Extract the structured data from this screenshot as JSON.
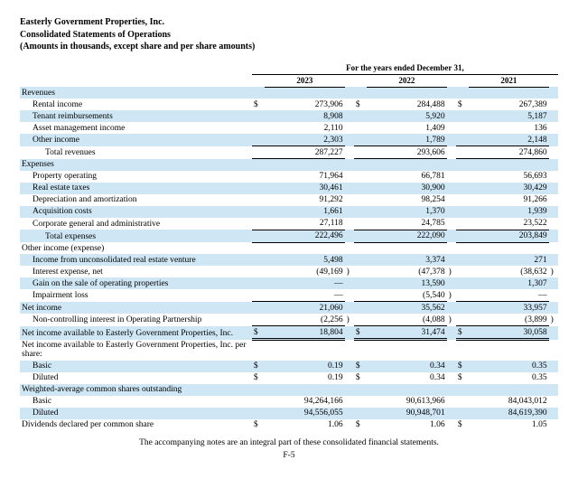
{
  "header": {
    "l1": "Easterly Government Properties, Inc.",
    "l2": "Consolidated Statements of Operations",
    "l3": "(Amounts in thousands, except share and per share amounts)"
  },
  "spanHeader": "For the years ended December 31,",
  "years": [
    "2023",
    "2022",
    "2021"
  ],
  "footnote": "The accompanying notes are an integral part of these consolidated financial statements.",
  "page": "F-5",
  "rows": [
    {
      "label": "Revenues",
      "band": true,
      "indent": 0
    },
    {
      "label": "Rental income",
      "indent": 1,
      "sym": "$",
      "v": [
        "273,906",
        "284,488",
        "267,389"
      ]
    },
    {
      "label": "Tenant reimbursements",
      "band": true,
      "indent": 1,
      "v": [
        "8,908",
        "5,920",
        "5,187"
      ]
    },
    {
      "label": "Asset management income",
      "indent": 1,
      "v": [
        "2,110",
        "1,409",
        "136"
      ]
    },
    {
      "label": "Other income",
      "band": true,
      "indent": 1,
      "v": [
        "2,303",
        "1,789",
        "2,148"
      ],
      "sb": true
    },
    {
      "label": "Total revenues",
      "indent": 2,
      "v": [
        "287,227",
        "293,606",
        "274,860"
      ],
      "sb": true
    },
    {
      "label": "Expenses",
      "band": true,
      "indent": 0
    },
    {
      "label": "Property operating",
      "indent": 1,
      "v": [
        "71,964",
        "66,781",
        "56,693"
      ]
    },
    {
      "label": "Real estate taxes",
      "band": true,
      "indent": 1,
      "v": [
        "30,461",
        "30,900",
        "30,429"
      ]
    },
    {
      "label": "Depreciation and amortization",
      "indent": 1,
      "v": [
        "91,292",
        "98,254",
        "91,266"
      ]
    },
    {
      "label": "Acquisition costs",
      "band": true,
      "indent": 1,
      "v": [
        "1,661",
        "1,370",
        "1,939"
      ]
    },
    {
      "label": "Corporate general and administrative",
      "indent": 1,
      "v": [
        "27,118",
        "24,785",
        "23,522"
      ],
      "sb": true
    },
    {
      "label": "Total expenses",
      "band": true,
      "indent": 2,
      "v": [
        "222,496",
        "222,090",
        "203,849"
      ],
      "sb": true
    },
    {
      "label": "Other income (expense)",
      "indent": 0
    },
    {
      "label": "Income from unconsolidated real estate venture",
      "band": true,
      "indent": 1,
      "v": [
        "5,498",
        "3,374",
        "271"
      ]
    },
    {
      "label": "Interest expense, net",
      "indent": 1,
      "v": [
        "(49,169",
        "(47,378",
        "(38,632"
      ],
      "paren": true
    },
    {
      "label": "Gain on the sale of operating properties",
      "band": true,
      "indent": 1,
      "v": [
        "—",
        "13,590",
        "1,307"
      ]
    },
    {
      "label": "Impairment loss",
      "indent": 1,
      "v": [
        "—",
        "(5,540",
        "—"
      ],
      "paren": [
        false,
        true,
        false
      ],
      "sb": true
    },
    {
      "label": "Net income",
      "band": true,
      "indent": 0,
      "v": [
        "21,060",
        "35,562",
        "33,957"
      ]
    },
    {
      "label": "Non-controlling interest in Operating Partnership",
      "indent": 1,
      "v": [
        "(2,256",
        "(4,088",
        "(3,899"
      ],
      "paren": true,
      "sb": true
    },
    {
      "label": "Net income available to Easterly Government Properties, Inc.",
      "band": true,
      "indent": 0,
      "sym": "$",
      "v": [
        "18,804",
        "31,474",
        "30,058"
      ],
      "db": true
    },
    {
      "label": "Net income available to Easterly Government Properties, Inc. per share:",
      "indent": 0,
      "multiline": true
    },
    {
      "label": "Basic",
      "band": true,
      "indent": 1,
      "sym": "$",
      "v": [
        "0.19",
        "0.34",
        "0.35"
      ]
    },
    {
      "label": "Diluted",
      "indent": 1,
      "sym": "$",
      "v": [
        "0.19",
        "0.34",
        "0.35"
      ]
    },
    {
      "label": "Weighted-average common shares outstanding",
      "band": true,
      "indent": 0
    },
    {
      "label": "Basic",
      "indent": 1,
      "v": [
        "94,264,166",
        "90,613,966",
        "84,043,012"
      ]
    },
    {
      "label": "Diluted",
      "band": true,
      "indent": 1,
      "v": [
        "94,556,055",
        "90,948,701",
        "84,619,390"
      ]
    },
    {
      "label": "Dividends declared per common share",
      "indent": 0,
      "sym": "$",
      "v": [
        "1.06",
        "1.06",
        "1.05"
      ]
    }
  ]
}
